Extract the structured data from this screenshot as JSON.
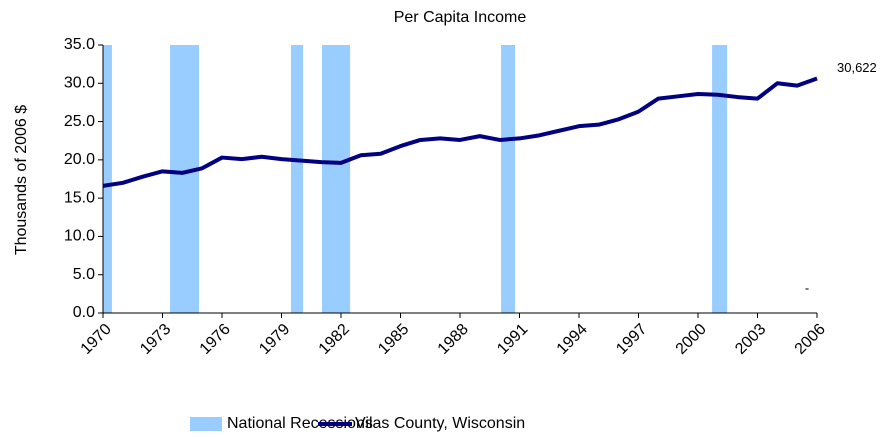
{
  "chart_data": {
    "type": "line",
    "title": "Per Capita Income",
    "y_label": "Thousands of 2006 $",
    "x": [
      1970,
      1971,
      1972,
      1973,
      1974,
      1975,
      1976,
      1977,
      1978,
      1979,
      1980,
      1981,
      1982,
      1983,
      1984,
      1985,
      1986,
      1987,
      1988,
      1989,
      1990,
      1991,
      1992,
      1993,
      1994,
      1995,
      1996,
      1997,
      1998,
      1999,
      2000,
      2001,
      2002,
      2003,
      2004,
      2005,
      2006
    ],
    "series": [
      {
        "name": "Vilas County, Wisconsin",
        "color": "#000080",
        "values": [
          16.6,
          17.0,
          17.8,
          18.5,
          18.3,
          18.9,
          20.3,
          20.1,
          20.4,
          20.1,
          19.9,
          19.7,
          19.6,
          20.6,
          20.8,
          21.8,
          22.6,
          22.8,
          22.6,
          23.1,
          22.6,
          22.8,
          23.2,
          23.8,
          24.4,
          24.6,
          25.3,
          26.3,
          28.0,
          28.3,
          28.6,
          28.5,
          28.2,
          28.0,
          30.0,
          29.7,
          30.622
        ],
        "end_value_label": "30,622"
      }
    ],
    "recessions": {
      "name": "National Recessions",
      "color": "#99ccff",
      "ranges": [
        [
          1970.0,
          1970.45
        ],
        [
          1973.38,
          1974.84
        ],
        [
          1979.48,
          1980.09
        ],
        [
          1981.04,
          1982.46
        ],
        [
          1990.07,
          1990.78
        ],
        [
          2000.71,
          2001.47
        ]
      ]
    },
    "annotation": "-",
    "xlim": [
      1970,
      2006
    ],
    "xticks": [
      1970,
      1973,
      1976,
      1979,
      1982,
      1985,
      1988,
      1991,
      1994,
      1997,
      2000,
      2003,
      2006
    ],
    "ylim": [
      0,
      35
    ],
    "yticks": [
      {
        "value": 0,
        "label": "0.0"
      },
      {
        "value": 5,
        "label": "5.0"
      },
      {
        "value": 10,
        "label": "10.0"
      },
      {
        "value": 15,
        "label": "15.0"
      },
      {
        "value": 20,
        "label": "20.0"
      },
      {
        "value": 25,
        "label": "25.0"
      },
      {
        "value": 30,
        "label": "30.0"
      },
      {
        "value": 35,
        "label": "35.0"
      }
    ]
  }
}
